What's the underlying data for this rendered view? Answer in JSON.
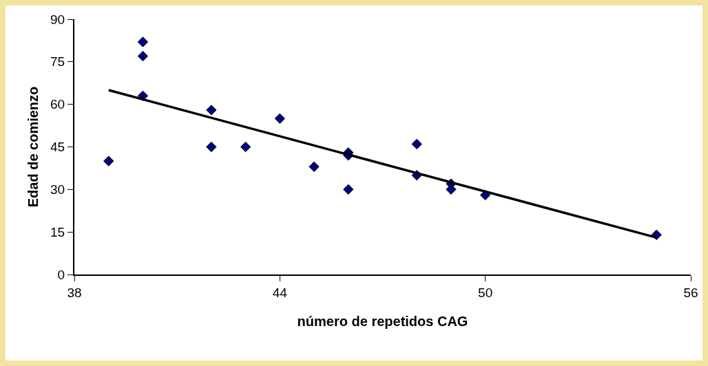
{
  "chart_data": {
    "type": "scatter",
    "xlabel": "número de repetidos CAG",
    "ylabel": "Edad de comienzo",
    "grid": false,
    "legend": false,
    "series": [
      {
        "marker": "diamond",
        "color": "#000080",
        "x": [
          39,
          40,
          40,
          40,
          42,
          42,
          43,
          44,
          45,
          46,
          46,
          46,
          48,
          48,
          49,
          49,
          50,
          55
        ],
        "values": [
          40,
          82,
          77,
          63,
          58,
          45,
          45,
          55,
          38,
          43,
          42,
          30,
          46,
          35,
          32,
          30,
          28,
          14
        ]
      },
      {
        "type": "line",
        "marker": "none",
        "color": "#000000",
        "x": [
          39,
          55
        ],
        "values": [
          65,
          13
        ]
      }
    ],
    "xlim": [
      38,
      56
    ],
    "xticks": [
      38,
      44,
      50,
      56
    ],
    "ylim": [
      0,
      90
    ],
    "yticks": [
      0,
      15,
      30,
      45,
      60,
      75,
      90
    ]
  }
}
